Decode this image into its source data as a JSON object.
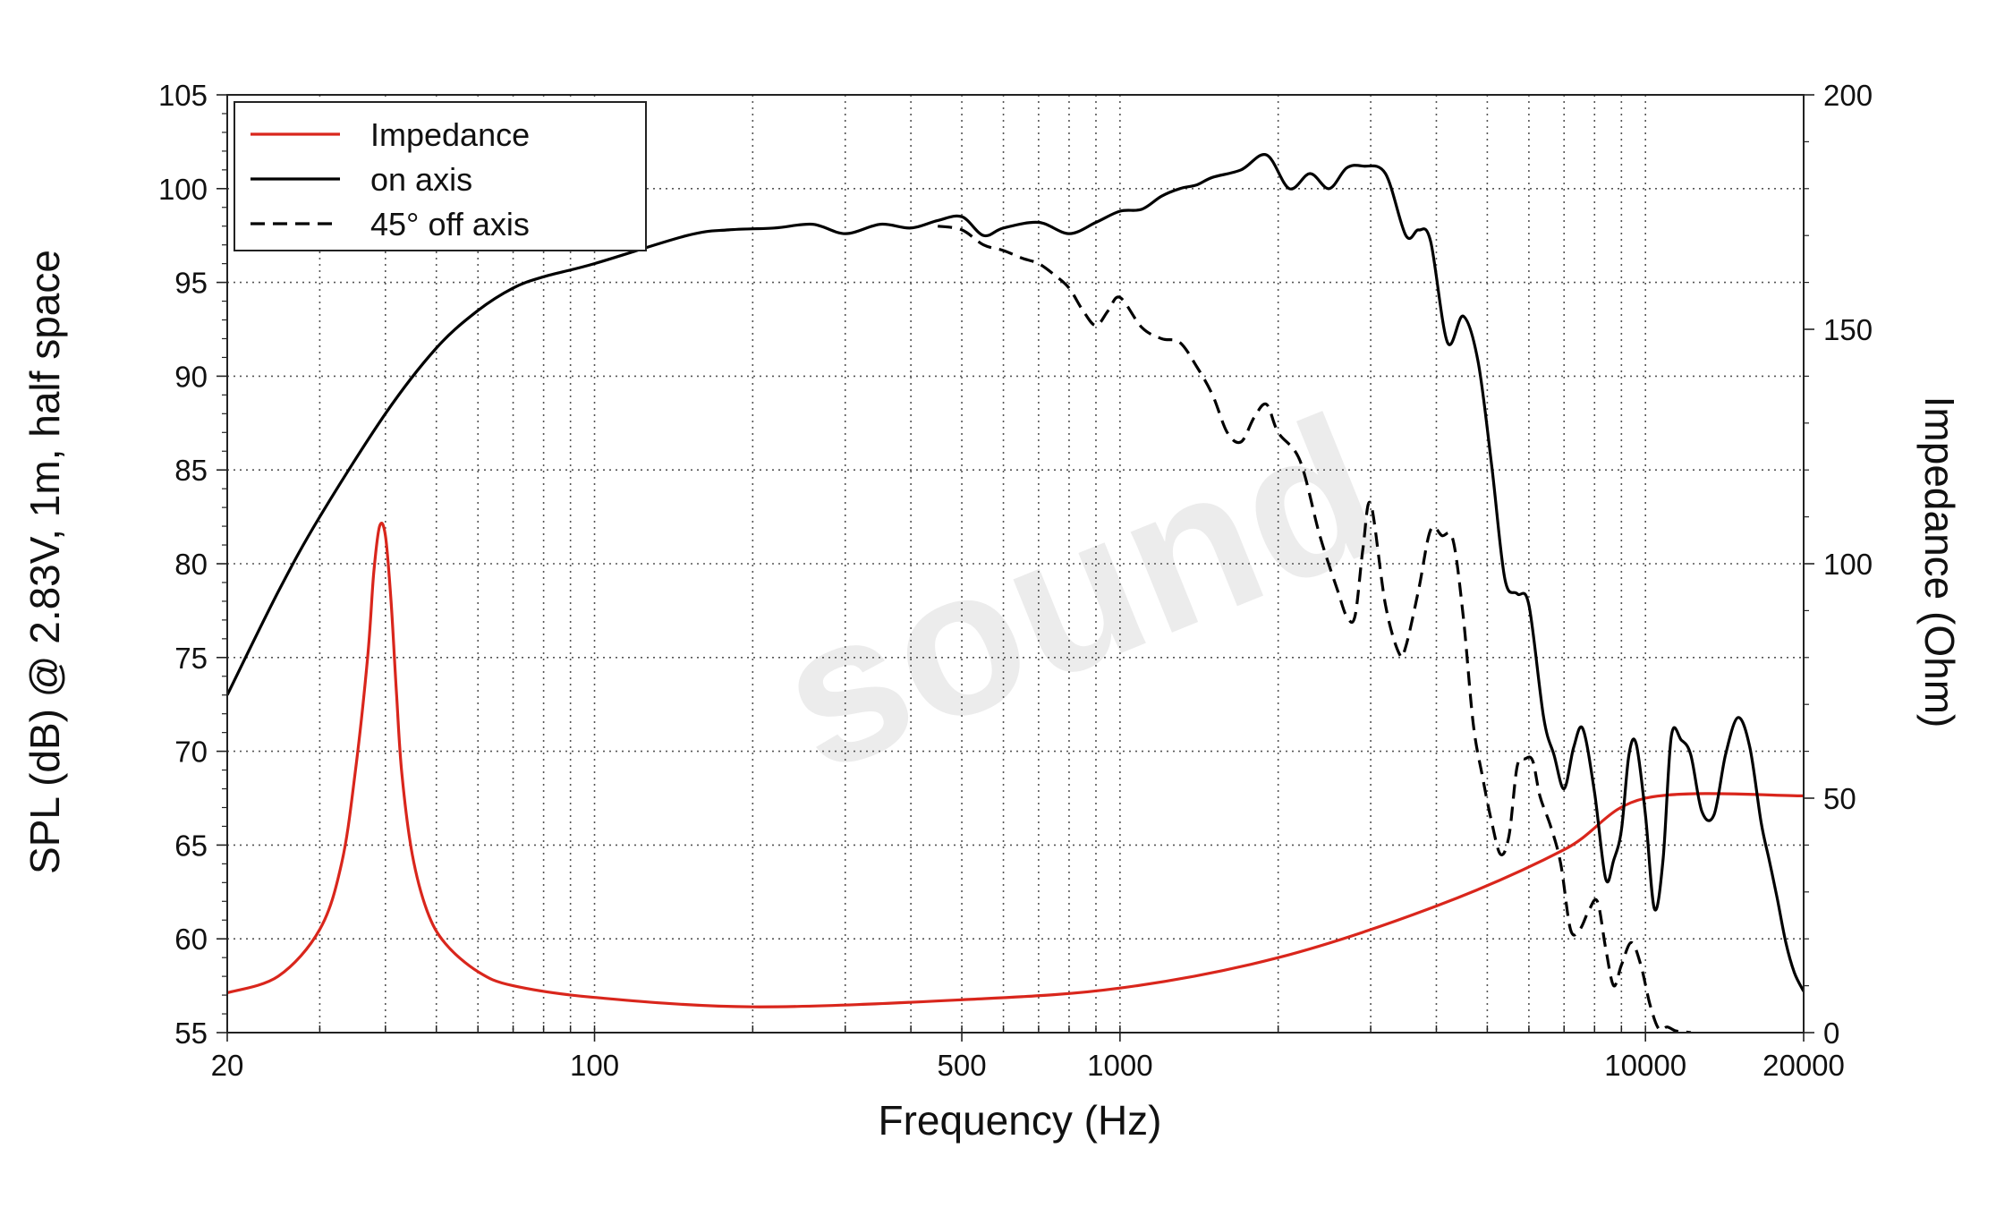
{
  "chart_data": {
    "type": "line",
    "xlabel": "Frequency (Hz)",
    "ylabel": "SPL (dB) @ 2.83V, 1m, half space",
    "y2label": "Impedance (Ohm)",
    "xscale": "log",
    "xlim": [
      20,
      20000
    ],
    "ylim": [
      55,
      105
    ],
    "y2lim": [
      0,
      200
    ],
    "x_tick_labels": [
      "20",
      "100",
      "500",
      "1000",
      "10000",
      "20000"
    ],
    "x_tick_values": [
      20,
      100,
      500,
      1000,
      10000,
      20000
    ],
    "y_tick_labels": [
      "55",
      "60",
      "65",
      "70",
      "75",
      "80",
      "85",
      "90",
      "95",
      "100",
      "105"
    ],
    "y2_tick_labels": [
      "0",
      "50",
      "100",
      "150",
      "200"
    ],
    "grid": true,
    "legend_position": "top-left",
    "watermark": "sound",
    "colors": {
      "impedance": "#d9261c",
      "on_axis": "#000000",
      "off_axis": "#000000",
      "grid": "#555555"
    },
    "series": [
      {
        "name": "Impedance",
        "axis": "right",
        "style": "solid",
        "x": [
          20,
          25,
          30,
          33,
          35,
          37,
          38,
          39,
          40,
          41,
          42,
          43,
          45,
          48,
          52,
          60,
          70,
          100,
          200,
          500,
          1000,
          2000,
          4000,
          7000,
          10000,
          20000
        ],
        "values": [
          8.5,
          12,
          22,
          36,
          55,
          80,
          98,
          108,
          106,
          92,
          72,
          55,
          38,
          26,
          19,
          13,
          10,
          7.5,
          5.5,
          7,
          9.5,
          16,
          27,
          39,
          50,
          50.5
        ]
      },
      {
        "name": "on axis",
        "axis": "left",
        "style": "solid",
        "x": [
          20,
          25,
          30,
          40,
          50,
          60,
          70,
          80,
          100,
          150,
          180,
          220,
          260,
          300,
          350,
          400,
          450,
          500,
          550,
          600,
          700,
          800,
          900,
          1000,
          1100,
          1200,
          1300,
          1400,
          1500,
          1700,
          1900,
          2100,
          2300,
          2500,
          2700,
          2900,
          3200,
          3500,
          3700,
          3900,
          4200,
          4500,
          4800,
          5100,
          5400,
          5700,
          6000,
          6400,
          6700,
          7000,
          7300,
          7600,
          8000,
          8400,
          8700,
          9000,
          9300,
          9600,
          10000,
          10400,
          10800,
          11200,
          11700,
          12200,
          12800,
          13500,
          14200,
          15000,
          15800,
          16600,
          17200,
          17800,
          18500,
          19200,
          20000
        ],
        "values": [
          73,
          78.5,
          82.5,
          88,
          91.5,
          93.5,
          94.7,
          95.3,
          96,
          97.5,
          97.8,
          97.9,
          98.1,
          97.6,
          98.1,
          97.9,
          98.3,
          98.5,
          97.5,
          97.9,
          98.2,
          97.6,
          98.2,
          98.8,
          98.9,
          99.6,
          100,
          100.2,
          100.6,
          101,
          101.8,
          100,
          100.8,
          100,
          101.1,
          101.2,
          100.8,
          97.5,
          97.8,
          97.2,
          91.8,
          93.2,
          90.8,
          85.2,
          79.2,
          78.4,
          77.8,
          71.8,
          69.8,
          68,
          70.2,
          71.2,
          67.8,
          63.2,
          64.2,
          65.8,
          69.8,
          70.4,
          66.6,
          61.6,
          64.2,
          70.8,
          70.6,
          69.8,
          66.8,
          66.6,
          69.8,
          71.8,
          70.2,
          66.2,
          64.2,
          62.2,
          59.8,
          58.2,
          57.2
        ]
      },
      {
        "name": "45° off axis",
        "axis": "left",
        "style": "dashed",
        "x": [
          450,
          500,
          550,
          600,
          650,
          700,
          750,
          800,
          850,
          900,
          950,
          1000,
          1100,
          1200,
          1300,
          1400,
          1500,
          1600,
          1700,
          1800,
          1900,
          2000,
          2200,
          2400,
          2600,
          2700,
          2800,
          2900,
          3000,
          3200,
          3400,
          3500,
          3700,
          3900,
          4100,
          4300,
          4500,
          4700,
          4900,
          5100,
          5300,
          5500,
          5700,
          5900,
          6100,
          6300,
          6600,
          6900,
          7200,
          7500,
          7800,
          8100,
          8400,
          8700,
          9000,
          9400,
          9800,
          10200,
          10600,
          11000,
          11400,
          11800,
          12200
        ],
        "values": [
          98,
          97.8,
          97,
          96.7,
          96.3,
          96,
          95.4,
          94.7,
          93.5,
          92.7,
          93.5,
          94.2,
          92.6,
          92,
          91.8,
          90.5,
          89,
          87,
          86.5,
          87.8,
          88.5,
          87,
          85.5,
          81.5,
          78.5,
          77.2,
          77.2,
          80.8,
          83.2,
          77.8,
          75.2,
          75.6,
          78.6,
          81.8,
          81.5,
          81.3,
          77.2,
          71.5,
          68.6,
          66.2,
          64.5,
          65.5,
          69.2,
          69.6,
          69.5,
          67.6,
          66,
          64,
          60.5,
          60.5,
          61.5,
          62,
          59.5,
          57.5,
          58.6,
          59.8,
          58.6,
          56.5,
          55.2,
          55.3,
          55.1,
          55.05,
          55
        ]
      }
    ]
  }
}
